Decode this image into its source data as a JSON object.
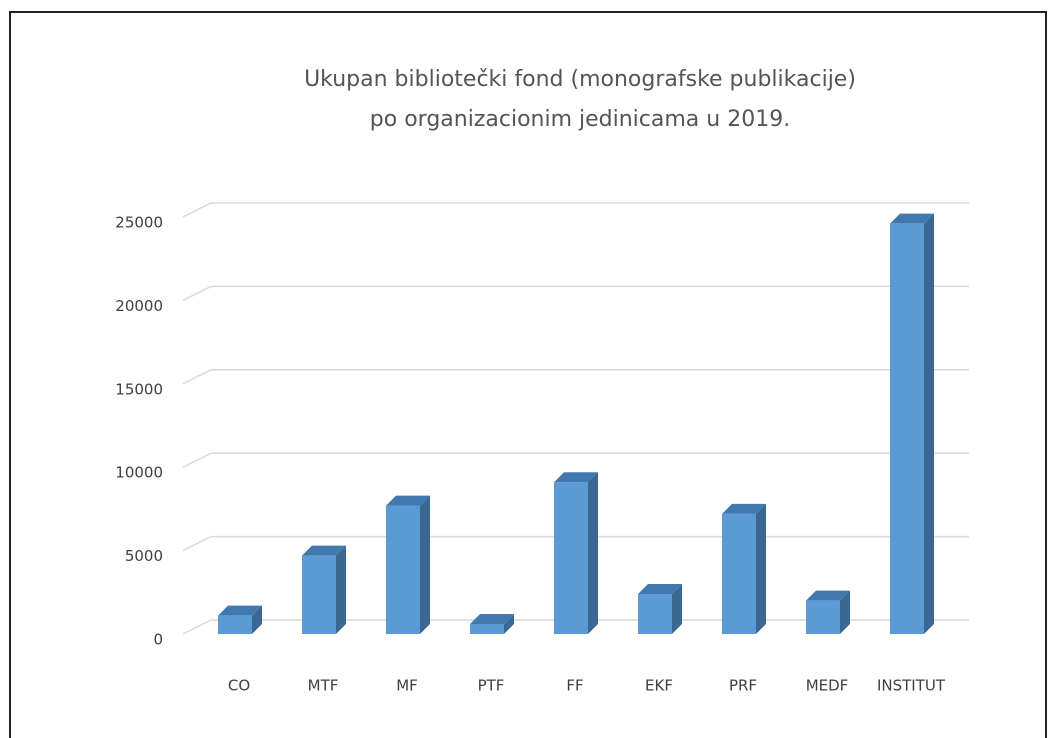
{
  "chart_data": {
    "type": "bar3d",
    "title": [
      "Ukupan bibliotečki fond (monografske publikacije)",
      "po organizacionim jedinicama u 2019."
    ],
    "categories": [
      "CO",
      "MTF",
      "MF",
      "PTF",
      "FF",
      "EKF",
      "PRF",
      "MEDF",
      "INSTITUT"
    ],
    "values": [
      1100,
      4700,
      7700,
      600,
      9100,
      2400,
      7200,
      2000,
      24600
    ],
    "color": "#5b9bd5",
    "ylim": [
      0,
      25000
    ],
    "yticks": [
      0,
      5000,
      10000,
      15000,
      20000,
      25000
    ],
    "grid": true
  }
}
